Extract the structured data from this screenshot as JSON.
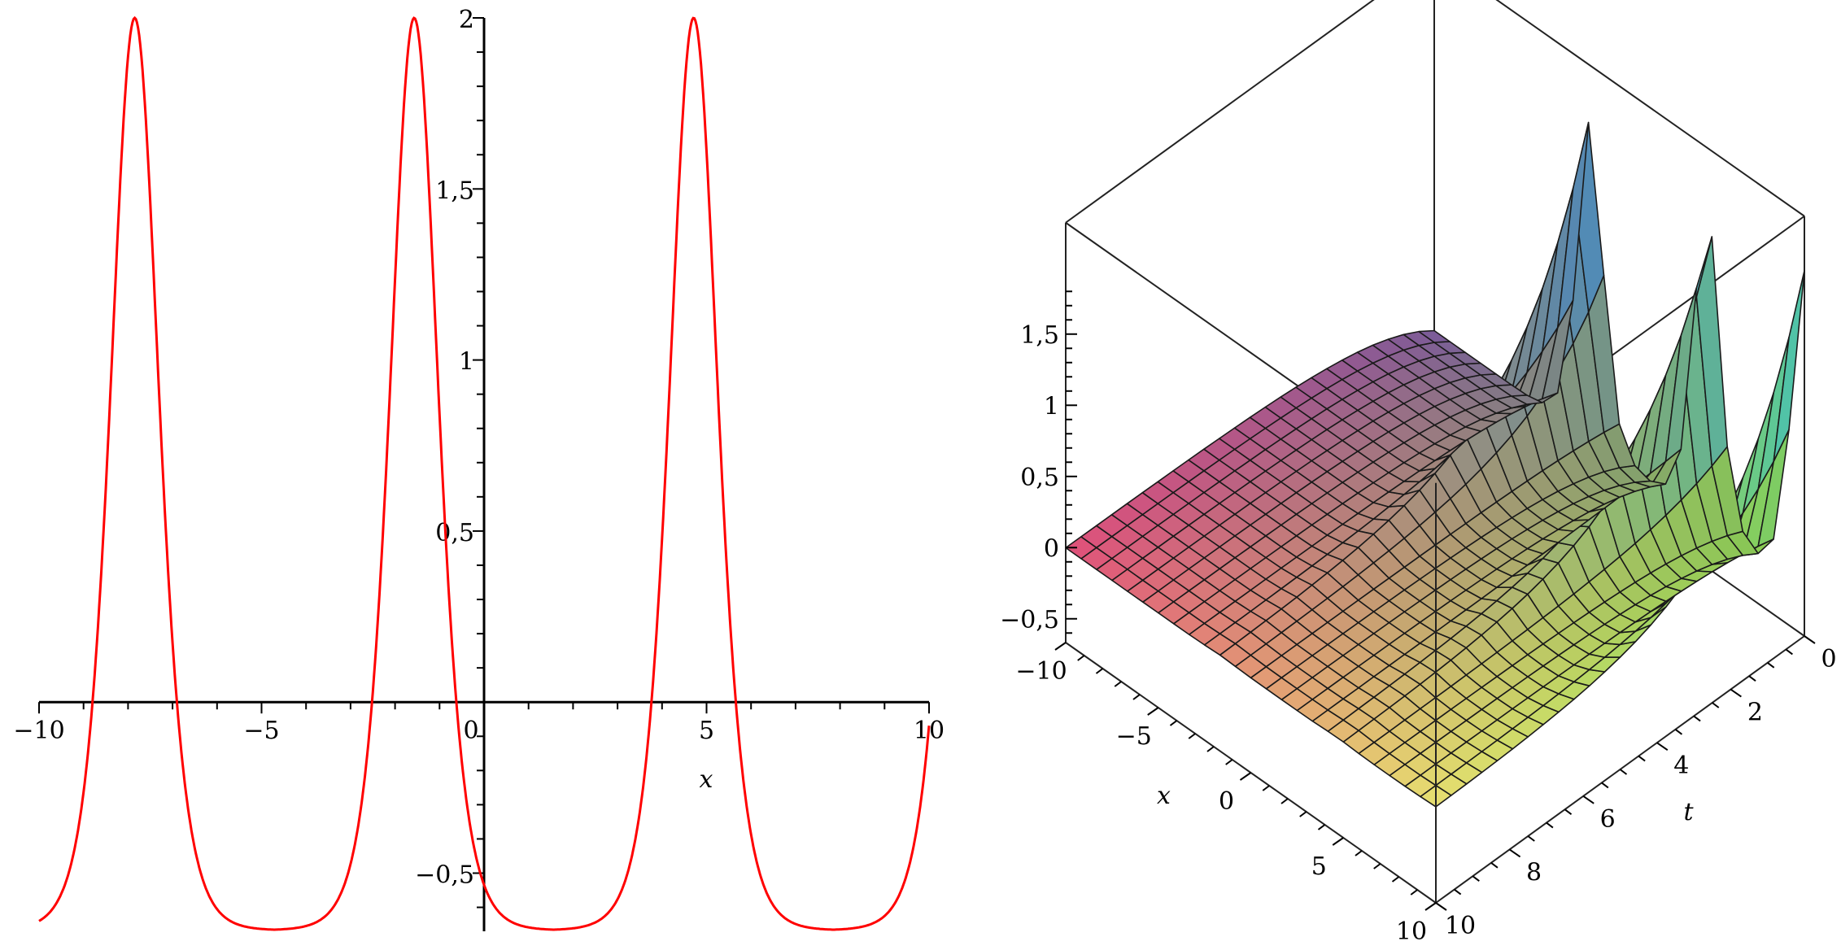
{
  "chart_data": [
    {
      "type": "line",
      "xlabel": "x",
      "ylabel": "",
      "xlim": [
        -10,
        10
      ],
      "ylim": [
        -0.67,
        2
      ],
      "x_ticks": [
        {
          "value": -10,
          "label": "−10"
        },
        {
          "value": -5,
          "label": "−5"
        },
        {
          "value": 0,
          "label": "0"
        },
        {
          "value": 5,
          "label": "5"
        },
        {
          "value": 10,
          "label": "10"
        }
      ],
      "y_ticks": [
        {
          "value": -0.5,
          "label": "−0,5"
        },
        {
          "value": 0.5,
          "label": "0,5"
        },
        {
          "value": 1,
          "label": "1"
        },
        {
          "value": 1.5,
          "label": "1,5"
        },
        {
          "value": 2,
          "label": "2"
        }
      ],
      "series": [
        {
          "color": "#ff0000",
          "peaks_x": [
            -7.85,
            -1.57,
            4.71
          ],
          "peak_value": 2,
          "trough_value": -0.667,
          "x": [
            -10,
            -9.5,
            -9,
            -8.5,
            -8.2,
            -7.85,
            -7.5,
            -7.2,
            -6.7,
            -6.3,
            -5.8,
            -4.7,
            -3.6,
            -3.1,
            -2.7,
            -2.3,
            -1.95,
            -1.57,
            -1.2,
            -0.9,
            -0.4,
            0,
            0.5,
            1.6,
            2.7,
            3.2,
            3.6,
            4.0,
            4.35,
            4.71,
            5.05,
            5.4,
            5.9,
            6.3,
            6.8,
            7.9,
            9.0,
            9.5,
            9.8,
            10
          ],
          "y": [
            -0.64,
            -0.42,
            0.05,
            0.95,
            1.6,
            2.0,
            1.6,
            0.95,
            0.05,
            -0.42,
            -0.62,
            -0.667,
            -0.62,
            -0.42,
            0.05,
            0.95,
            1.6,
            2.0,
            1.6,
            0.95,
            0.05,
            -0.49,
            -0.62,
            -0.667,
            -0.62,
            -0.42,
            0.05,
            0.95,
            1.6,
            2.0,
            1.6,
            0.95,
            0.05,
            -0.42,
            -0.62,
            -0.667,
            -0.62,
            -0.42,
            -0.05,
            0.09
          ]
        }
      ]
    },
    {
      "type": "surface",
      "xlabel": "x",
      "ylabel": "t",
      "zlabel": "",
      "xlim": [
        -10,
        10
      ],
      "tlim": [
        0,
        10
      ],
      "zlim": [
        -0.667,
        2
      ],
      "x_ticks": [
        {
          "value": -10,
          "label": "−10"
        },
        {
          "value": -5,
          "label": "−5"
        },
        {
          "value": 0,
          "label": "0"
        },
        {
          "value": 5,
          "label": "5"
        },
        {
          "value": 10,
          "label": "10"
        }
      ],
      "t_ticks": [
        {
          "value": 0,
          "label": "0"
        },
        {
          "value": 2,
          "label": "2"
        },
        {
          "value": 4,
          "label": "4"
        },
        {
          "value": 6,
          "label": "6"
        },
        {
          "value": 8,
          "label": "8"
        },
        {
          "value": 10,
          "label": "10"
        }
      ],
      "z_ticks": [
        {
          "value": -0.5,
          "label": "−0,5"
        },
        {
          "value": 0,
          "label": "0"
        },
        {
          "value": 0.5,
          "label": "0,5"
        },
        {
          "value": 1,
          "label": "1"
        },
        {
          "value": 1.5,
          "label": "1,5"
        }
      ],
      "peaks_x": [
        -1.57,
        4.71,
        10
      ],
      "peak_value": 1.9,
      "grid_divisions": 24,
      "colors": {
        "corner_x_min_t_min": "#7a5a9a",
        "corner_x_min_t_max": "#e0507a",
        "corner_x_max_t_max": "#e8e070",
        "corner_x_max_t_min": "#8ad84a",
        "peak_low_x": "#4a60c8",
        "peak_high_x": "#40c0c0",
        "mesh": "#1a1a1a"
      }
    }
  ]
}
